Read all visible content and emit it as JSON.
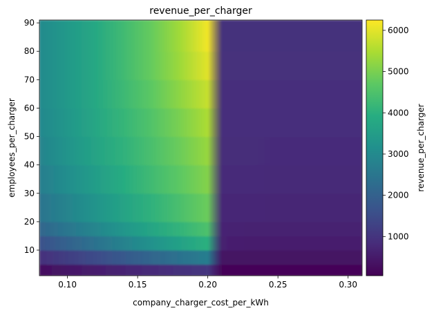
{
  "chart_data": {
    "type": "heatmap",
    "title": "revenue_per_charger",
    "xlabel": "company_charger_cost_per_kWh",
    "ylabel": "employees_per_charger",
    "colorbar_label": "revenue_per_charger",
    "colormap": "viridis",
    "xlim": [
      0.08,
      0.31
    ],
    "ylim": [
      1,
      91
    ],
    "zlim": [
      50,
      6250
    ],
    "x_ticks": [
      0.1,
      0.15,
      0.2,
      0.25,
      0.3
    ],
    "x_tick_labels": [
      "0.10",
      "0.15",
      "0.20",
      "0.25",
      "0.30"
    ],
    "y_ticks": [
      10,
      20,
      30,
      40,
      50,
      60,
      70,
      80,
      90
    ],
    "y_tick_labels": [
      "10",
      "20",
      "30",
      "40",
      "50",
      "60",
      "70",
      "80",
      "90"
    ],
    "colorbar_ticks": [
      1000,
      2000,
      3000,
      4000,
      5000,
      6000
    ],
    "colorbar_tick_labels": [
      "1000",
      "2000",
      "3000",
      "4000",
      "5000",
      "6000"
    ],
    "x": [
      0.08,
      0.1,
      0.12,
      0.14,
      0.16,
      0.18,
      0.2,
      0.21,
      0.23,
      0.25,
      0.27,
      0.29,
      0.31
    ],
    "y": [
      1,
      5,
      10,
      15,
      20,
      30,
      40,
      50,
      60,
      70,
      80,
      91
    ],
    "z": [
      [
        80,
        150,
        200,
        250,
        300,
        350,
        400,
        80,
        60,
        60,
        60,
        60,
        60
      ],
      [
        500,
        700,
        900,
        1100,
        1300,
        1500,
        1700,
        200,
        200,
        200,
        200,
        200,
        200
      ],
      [
        1300,
        1700,
        2100,
        2500,
        2900,
        3300,
        3700,
        550,
        500,
        500,
        500,
        500,
        500
      ],
      [
        1900,
        2300,
        2700,
        3100,
        3500,
        3900,
        4300,
        650,
        600,
        600,
        600,
        600,
        600
      ],
      [
        2300,
        2700,
        3100,
        3500,
        3900,
        4300,
        4700,
        700,
        700,
        700,
        700,
        700,
        700
      ],
      [
        2600,
        3000,
        3400,
        3800,
        4200,
        4600,
        5000,
        780,
        780,
        760,
        760,
        760,
        760
      ],
      [
        2800,
        3200,
        3600,
        4000,
        4400,
        4800,
        5200,
        820,
        820,
        800,
        800,
        800,
        800
      ],
      [
        2900,
        3300,
        3700,
        4100,
        4500,
        4900,
        5400,
        860,
        860,
        850,
        850,
        850,
        850
      ],
      [
        3000,
        3400,
        3800,
        4200,
        4600,
        5100,
        5600,
        880,
        880,
        880,
        880,
        880,
        880
      ],
      [
        3000,
        3400,
        3800,
        4300,
        4800,
        5300,
        5900,
        900,
        900,
        900,
        900,
        900,
        900
      ],
      [
        3000,
        3400,
        3800,
        4300,
        4800,
        5400,
        6100,
        920,
        920,
        920,
        920,
        920,
        920
      ],
      [
        3000,
        3400,
        3800,
        4300,
        4800,
        5400,
        6200,
        940,
        940,
        940,
        940,
        940,
        940
      ]
    ]
  }
}
